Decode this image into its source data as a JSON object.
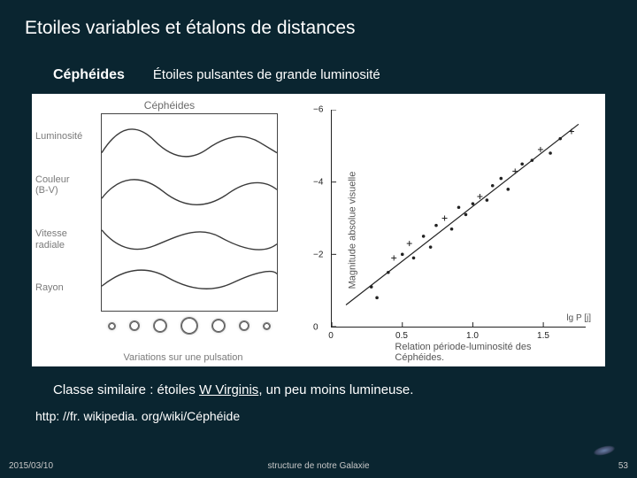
{
  "title": "Etoiles variables et étalons de distances",
  "subtitle_bold": "Céphéides",
  "subtitle_normal": "Étoiles pulsantes de grande luminosité",
  "left_figure": {
    "title": "Céphéides",
    "ylabels": [
      "Luminosité",
      "Couleur\n(B-V)",
      "Vitesse\nradiale",
      "Rayon"
    ],
    "caption": "Variations sur une pulsation",
    "star_sizes": [
      7,
      10,
      14,
      18,
      14,
      10,
      7
    ],
    "curve_color": "#3a3a3a"
  },
  "right_figure": {
    "ylabel": "Magnitude absolue visuelle",
    "xlabel_extra": "lg P [j]",
    "caption": "Relation période-luminosité des Céphéides.",
    "xlim": [
      0,
      1.8
    ],
    "ylim_top": -6,
    "ylim_bottom": 0,
    "yticks": [
      -6,
      -4,
      -2,
      0
    ],
    "xticks": [
      0,
      0.5,
      1.0,
      1.5
    ],
    "line": {
      "x1": 0.1,
      "y1": -0.6,
      "x2": 1.75,
      "y2": -5.6
    },
    "points": [
      {
        "x": 0.28,
        "y": -1.1,
        "m": "dot"
      },
      {
        "x": 0.32,
        "y": -0.8,
        "m": "dot"
      },
      {
        "x": 0.4,
        "y": -1.5,
        "m": "dot"
      },
      {
        "x": 0.44,
        "y": -1.9,
        "m": "plus"
      },
      {
        "x": 0.5,
        "y": -2.0,
        "m": "dot"
      },
      {
        "x": 0.55,
        "y": -2.3,
        "m": "plus"
      },
      {
        "x": 0.58,
        "y": -1.9,
        "m": "dot"
      },
      {
        "x": 0.65,
        "y": -2.5,
        "m": "dot"
      },
      {
        "x": 0.7,
        "y": -2.2,
        "m": "dot"
      },
      {
        "x": 0.74,
        "y": -2.8,
        "m": "dot"
      },
      {
        "x": 0.8,
        "y": -3.0,
        "m": "plus"
      },
      {
        "x": 0.85,
        "y": -2.7,
        "m": "dot"
      },
      {
        "x": 0.9,
        "y": -3.3,
        "m": "dot"
      },
      {
        "x": 0.95,
        "y": -3.1,
        "m": "dot"
      },
      {
        "x": 1.0,
        "y": -3.4,
        "m": "dot"
      },
      {
        "x": 1.05,
        "y": -3.6,
        "m": "plus"
      },
      {
        "x": 1.1,
        "y": -3.5,
        "m": "dot"
      },
      {
        "x": 1.14,
        "y": -3.9,
        "m": "dot"
      },
      {
        "x": 1.2,
        "y": -4.1,
        "m": "dot"
      },
      {
        "x": 1.25,
        "y": -3.8,
        "m": "dot"
      },
      {
        "x": 1.3,
        "y": -4.3,
        "m": "plus"
      },
      {
        "x": 1.35,
        "y": -4.5,
        "m": "dot"
      },
      {
        "x": 1.42,
        "y": -4.6,
        "m": "dot"
      },
      {
        "x": 1.48,
        "y": -4.9,
        "m": "plus"
      },
      {
        "x": 1.55,
        "y": -4.8,
        "m": "dot"
      },
      {
        "x": 1.62,
        "y": -5.2,
        "m": "dot"
      },
      {
        "x": 1.7,
        "y": -5.4,
        "m": "plus"
      }
    ]
  },
  "caption_pre": "Classe similaire : étoiles ",
  "caption_link": "W Virginis",
  "caption_post": ", un peu moins lumineuse.",
  "url": "http: //fr. wikipedia. org/wiki/Céphéide",
  "footer": {
    "date": "2015/03/10",
    "center": "structure de notre Galaxie",
    "page": "53"
  },
  "colors": {
    "bg": "#0a2530",
    "text": "#ffffff",
    "figure_bg": "#ffffff",
    "gray_text": "#7a7a7a",
    "plot_line": "#222222"
  }
}
